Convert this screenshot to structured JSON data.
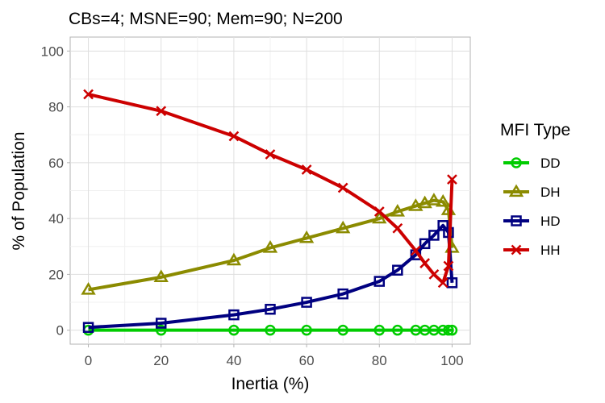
{
  "chart_data": {
    "type": "line",
    "title": "CBs=4; MSNE=90; Mem=90; N=200",
    "xlabel": "Inertia (%)",
    "ylabel": "% of Population",
    "xlim": [
      -5,
      105
    ],
    "ylim": [
      -5,
      105
    ],
    "xticks": [
      0,
      20,
      40,
      60,
      80,
      100
    ],
    "yticks": [
      0,
      20,
      40,
      60,
      80,
      100
    ],
    "grid": true,
    "legend": {
      "title": "MFI Type",
      "position": "right"
    },
    "x": [
      0,
      20,
      40,
      50,
      60,
      70,
      80,
      85,
      90,
      92.5,
      95,
      97.5,
      99,
      100
    ],
    "series": [
      {
        "name": "DD",
        "color": "#00CC00",
        "marker": "circle",
        "values": [
          0,
          0,
          0,
          0,
          0,
          0,
          0,
          0,
          0,
          0,
          0,
          0,
          0,
          0
        ]
      },
      {
        "name": "DH",
        "color": "#8B8B00",
        "marker": "triangle",
        "values": [
          14.5,
          19,
          25,
          29.5,
          33,
          36.5,
          40,
          42.5,
          44.5,
          45.5,
          46.5,
          46,
          43,
          29.5
        ]
      },
      {
        "name": "HD",
        "color": "#000080",
        "marker": "square",
        "values": [
          1,
          2.5,
          5.5,
          7.5,
          10,
          13,
          17.5,
          21.5,
          27,
          31,
          34,
          37.5,
          35,
          17
        ]
      },
      {
        "name": "HH",
        "color": "#CC0000",
        "marker": "x",
        "values": [
          84.5,
          78.5,
          69.5,
          63,
          57.5,
          51,
          42.5,
          36.5,
          28.5,
          24,
          20,
          17,
          23,
          54
        ]
      }
    ]
  }
}
